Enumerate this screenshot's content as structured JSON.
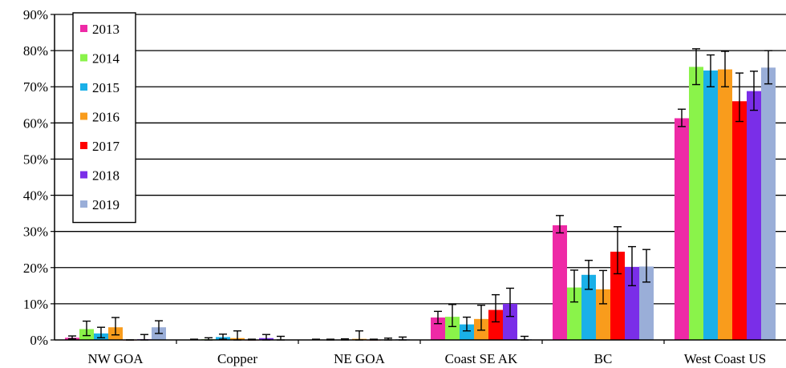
{
  "chart_data": {
    "type": "bar",
    "categories": [
      "NW GOA",
      "Copper",
      "NE GOA",
      "Coast SE AK",
      "BC",
      "West Coast US"
    ],
    "y_unit": "%",
    "ylim": [
      0,
      90
    ],
    "ytick_step": 10,
    "grid": true,
    "legend_position": "top-left",
    "series": [
      {
        "name": "2013",
        "color": "#ee2aa6",
        "values": [
          0.6,
          0.1,
          0.1,
          6.2,
          31.7,
          61.3
        ],
        "err_low": [
          0.3,
          0.1,
          0.1,
          4.5,
          29.6,
          59.0
        ],
        "err_high": [
          1.1,
          0.2,
          0.2,
          7.9,
          34.4,
          63.8
        ]
      },
      {
        "name": "2014",
        "color": "#8af34a",
        "values": [
          3.0,
          0.2,
          0.1,
          6.4,
          14.5,
          75.5
        ],
        "err_low": [
          1.2,
          0.0,
          0.0,
          3.7,
          10.5,
          70.6
        ],
        "err_high": [
          5.2,
          0.6,
          0.2,
          9.8,
          19.3,
          80.5
        ]
      },
      {
        "name": "2015",
        "color": "#1ab0e8",
        "values": [
          1.8,
          0.8,
          0.1,
          4.3,
          18.0,
          74.5
        ],
        "err_low": [
          0.6,
          0.2,
          0.0,
          2.5,
          14.0,
          70.0
        ],
        "err_high": [
          3.5,
          1.6,
          0.3,
          6.3,
          22.0,
          78.8
        ]
      },
      {
        "name": "2016",
        "color": "#f99c1c",
        "values": [
          3.5,
          0.5,
          0.3,
          5.8,
          14.0,
          74.8
        ],
        "err_low": [
          1.4,
          0.0,
          0.0,
          2.7,
          10.0,
          70.0
        ],
        "err_high": [
          6.2,
          2.5,
          2.5,
          9.6,
          19.2,
          79.8
        ]
      },
      {
        "name": "2017",
        "color": "#ff0000",
        "values": [
          0.0,
          0.0,
          0.0,
          8.3,
          24.4,
          66.0
        ],
        "err_low": [
          0.0,
          0.0,
          0.0,
          5.0,
          18.3,
          60.4
        ],
        "err_high": [
          0.0,
          0.2,
          0.2,
          12.5,
          31.3,
          73.8
        ]
      },
      {
        "name": "2018",
        "color": "#7a2ee8",
        "values": [
          0.2,
          0.5,
          0.1,
          10.0,
          20.2,
          68.8
        ],
        "err_low": [
          0.0,
          0.0,
          0.0,
          6.5,
          15.0,
          63.5
        ],
        "err_high": [
          1.5,
          1.5,
          0.5,
          14.3,
          25.8,
          74.3
        ]
      },
      {
        "name": "2019",
        "color": "#9aaed8",
        "values": [
          3.5,
          0.1,
          0.2,
          0.2,
          20.3,
          75.3
        ],
        "err_low": [
          1.8,
          0.0,
          0.0,
          0.0,
          16.0,
          70.8
        ],
        "err_high": [
          5.3,
          1.0,
          0.8,
          1.0,
          25.0,
          80.0
        ]
      }
    ]
  }
}
